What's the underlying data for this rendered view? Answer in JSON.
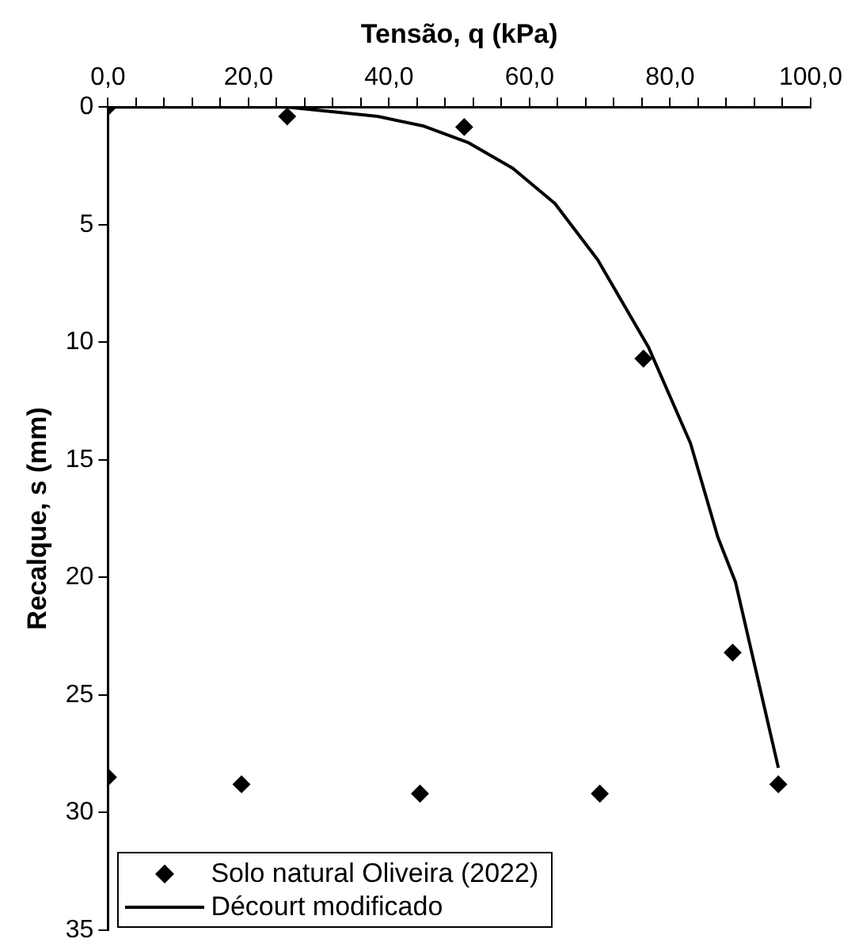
{
  "chart_data": {
    "type": "scatter",
    "xlabel": "Tensão, q (kPa)",
    "ylabel": "Recalque, s (mm)",
    "xlim": [
      0,
      100
    ],
    "xticks": [
      {
        "value": 0,
        "label": "0,0"
      },
      {
        "value": 4,
        "label": null
      },
      {
        "value": 8,
        "label": null
      },
      {
        "value": 12,
        "label": null
      },
      {
        "value": 16,
        "label": null
      },
      {
        "value": 20,
        "label": "20,0"
      },
      {
        "value": 24,
        "label": null
      },
      {
        "value": 28,
        "label": null
      },
      {
        "value": 32,
        "label": null
      },
      {
        "value": 36,
        "label": null
      },
      {
        "value": 40,
        "label": "40,0"
      },
      {
        "value": 44,
        "label": null
      },
      {
        "value": 48,
        "label": null
      },
      {
        "value": 52,
        "label": null
      },
      {
        "value": 56,
        "label": null
      },
      {
        "value": 60,
        "label": "60,0"
      },
      {
        "value": 64,
        "label": null
      },
      {
        "value": 68,
        "label": null
      },
      {
        "value": 72,
        "label": null
      },
      {
        "value": 76,
        "label": null
      },
      {
        "value": 80,
        "label": "80,0"
      },
      {
        "value": 84,
        "label": null
      },
      {
        "value": 88,
        "label": null
      },
      {
        "value": 92,
        "label": null
      },
      {
        "value": 96,
        "label": null
      },
      {
        "value": 100,
        "label": "100,0"
      }
    ],
    "ylim": [
      35,
      0
    ],
    "yticks": [
      0,
      5,
      10,
      15,
      20,
      25,
      30,
      35
    ],
    "grid": false,
    "legend": "bottom left",
    "series": [
      {
        "name": "Solo natural Oliveira (2022)",
        "type": "scatter",
        "marker": "diamond",
        "color": "#000000",
        "x": [
          0,
          25.5,
          50.7,
          76.2,
          88.9,
          95.4,
          0,
          19.0,
          44.4,
          70.0
        ],
        "values": [
          0,
          0.4,
          0.85,
          10.7,
          23.2,
          28.8,
          28.5,
          28.8,
          29.2,
          29.2
        ]
      },
      {
        "name": "Décourt modificado",
        "type": "line",
        "marker": "none",
        "line_style": "solid",
        "color": "#000000",
        "x": [
          0,
          25.5,
          28.8,
          38.4,
          44.8,
          51.2,
          57.6,
          63.6,
          69.7,
          76.9,
          82.9,
          86.8,
          89.3,
          95.4
        ],
        "values": [
          0,
          0,
          0.1,
          0.4,
          0.8,
          1.5,
          2.6,
          4.1,
          6.5,
          10.2,
          14.3,
          18.3,
          20.2,
          28.1
        ]
      }
    ]
  }
}
